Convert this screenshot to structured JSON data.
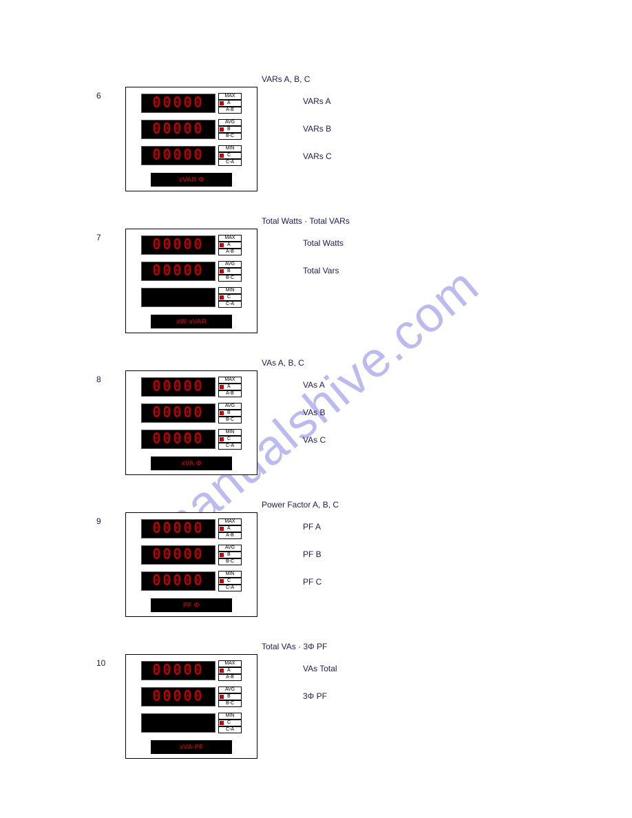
{
  "watermark": "manualshive.com",
  "digit_value": "00000",
  "digit_color": "#bb0000",
  "unit_color": "#aa0000",
  "tags_per_row": [
    [
      "MAX",
      "A",
      "A-B"
    ],
    [
      "AVG",
      "B",
      "B-C"
    ],
    [
      "MIN",
      "C",
      "C-A"
    ]
  ],
  "sections": [
    {
      "index": "6",
      "title": "VARs A, B, C",
      "unit": "xVAR Φ",
      "rows": [
        {
          "show_digits": true,
          "desc": "VARs A"
        },
        {
          "show_digits": true,
          "desc": "VARs B"
        },
        {
          "show_digits": true,
          "desc": "VARs C"
        }
      ]
    },
    {
      "index": "7",
      "title": "Total Watts · Total VARs",
      "unit": "xW·xVAR",
      "rows": [
        {
          "show_digits": true,
          "desc": "Total Watts"
        },
        {
          "show_digits": true,
          "desc": "Total Vars"
        },
        {
          "show_digits": false,
          "desc": ""
        }
      ]
    },
    {
      "index": "8",
      "title": "VAs A, B, C",
      "unit": "xVA Φ",
      "rows": [
        {
          "show_digits": true,
          "desc": "VAs A"
        },
        {
          "show_digits": true,
          "desc": "VAs B"
        },
        {
          "show_digits": true,
          "desc": "VAs C"
        }
      ]
    },
    {
      "index": "9",
      "title": "Power Factor A, B, C",
      "unit": "PF Φ",
      "rows": [
        {
          "show_digits": true,
          "desc": "PF A"
        },
        {
          "show_digits": true,
          "desc": "PF B"
        },
        {
          "show_digits": true,
          "desc": "PF C"
        }
      ]
    },
    {
      "index": "10",
      "title": "Total VAs · 3Φ PF",
      "unit": "xVA·PF",
      "rows": [
        {
          "show_digits": true,
          "desc": "VAs Total"
        },
        {
          "show_digits": true,
          "desc": "3Φ PF"
        },
        {
          "show_digits": false,
          "desc": ""
        }
      ]
    }
  ]
}
